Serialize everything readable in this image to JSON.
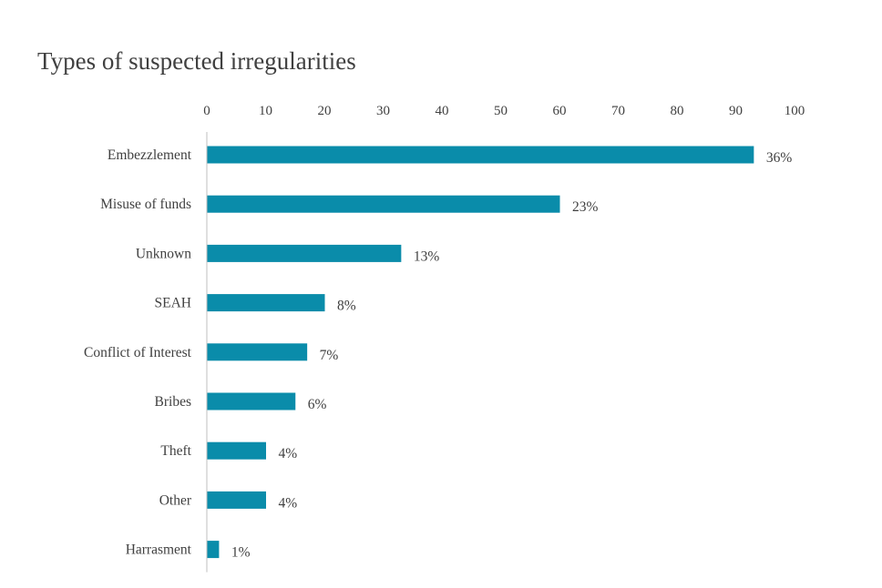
{
  "chart_data": {
    "type": "bar",
    "orientation": "horizontal",
    "title": "Types of suspected irregularities",
    "xlabel": "",
    "ylabel": "",
    "xlim": [
      0,
      100
    ],
    "x_ticks": [
      "0",
      "10",
      "20",
      "30",
      "40",
      "50",
      "60",
      "70",
      "80",
      "90",
      "100"
    ],
    "grid": false,
    "legend": "none",
    "bar_color": "#0A8CAA",
    "categories": [
      "Embezzlement",
      "Misuse of funds",
      "Unknown",
      "SEAH",
      "Conflict of Interest",
      "Bribes",
      "Theft",
      "Other",
      "Harrasment"
    ],
    "values": [
      93,
      60,
      33,
      20,
      17,
      15,
      10,
      10,
      2
    ],
    "data_labels": [
      "36%",
      "23%",
      "13%",
      "8%",
      "7%",
      "6%",
      "4%",
      "4%",
      "1%"
    ]
  }
}
